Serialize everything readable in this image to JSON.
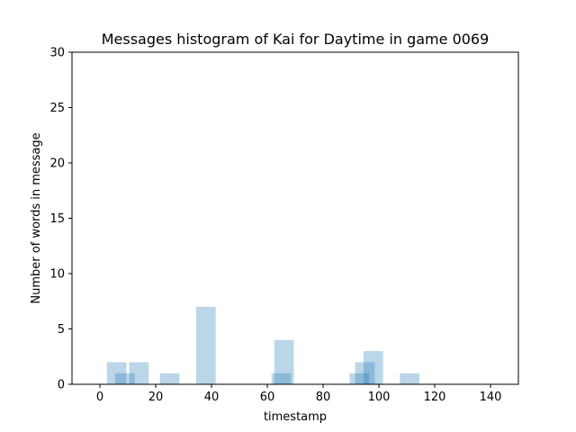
{
  "chart_data": {
    "type": "bar",
    "title": "Messages histogram of Kai for Daytime in game 0069",
    "xlabel": "timestamp",
    "ylabel": "Number of words in message",
    "xlim": [
      -10,
      150
    ],
    "ylim": [
      0,
      30
    ],
    "xticks": [
      "0",
      "20",
      "40",
      "60",
      "80",
      "100",
      "120",
      "140"
    ],
    "xtick_values": [
      0,
      20,
      40,
      60,
      80,
      100,
      120,
      140
    ],
    "yticks": [
      "0",
      "5",
      "10",
      "15",
      "20",
      "25",
      "30"
    ],
    "ytick_values": [
      0,
      5,
      10,
      15,
      20,
      25,
      30
    ],
    "bar_color": "#1f77b4",
    "bar_opacity": 0.3,
    "grid": false,
    "bars": [
      {
        "x": 6,
        "width": 7,
        "value": 2
      },
      {
        "x": 9,
        "width": 7,
        "value": 1
      },
      {
        "x": 14,
        "width": 7,
        "value": 2
      },
      {
        "x": 25,
        "width": 7,
        "value": 1
      },
      {
        "x": 38,
        "width": 7,
        "value": 7
      },
      {
        "x": 65,
        "width": 7,
        "value": 1
      },
      {
        "x": 66,
        "width": 7,
        "value": 4
      },
      {
        "x": 93,
        "width": 7,
        "value": 1
      },
      {
        "x": 95,
        "width": 7,
        "value": 2
      },
      {
        "x": 98,
        "width": 7,
        "value": 3
      },
      {
        "x": 111,
        "width": 7,
        "value": 1
      }
    ]
  }
}
